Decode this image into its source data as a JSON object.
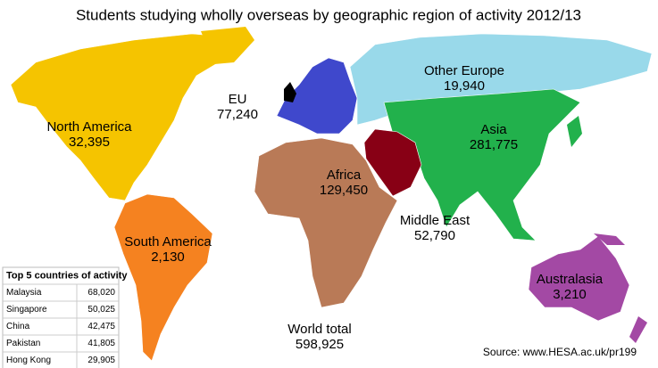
{
  "title": "Students studying wholly overseas by geographic region of activity 2012/13",
  "regions": [
    {
      "name": "North America",
      "value": "32,395"
    },
    {
      "name": "South America",
      "value": "2,130"
    },
    {
      "name": "EU",
      "value": "77,240"
    },
    {
      "name": "Other Europe",
      "value": "19,940"
    },
    {
      "name": "Asia",
      "value": "281,775"
    },
    {
      "name": "Africa",
      "value": "129,450"
    },
    {
      "name": "Middle East",
      "value": "52,790"
    },
    {
      "name": "Australasia",
      "value": "3,210"
    }
  ],
  "world_total": {
    "label": "World total",
    "value": "598,925"
  },
  "table": {
    "title": "Top 5 countries of activity",
    "rows": [
      [
        "Malaysia",
        "68,020"
      ],
      [
        "Singapore",
        "50,025"
      ],
      [
        "China",
        "42,475"
      ],
      [
        "Pakistan",
        "41,805"
      ],
      [
        "Hong Kong",
        "29,905"
      ]
    ]
  },
  "source": "Source: www.HESA.ac.uk/pr199"
}
